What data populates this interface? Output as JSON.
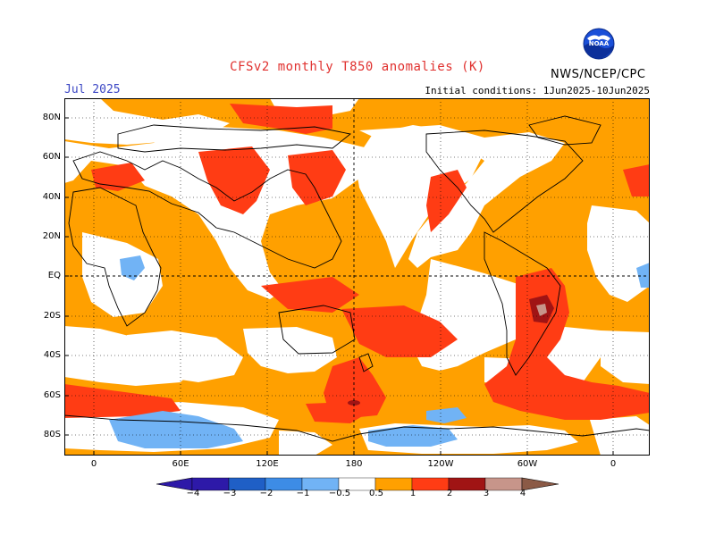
{
  "header": {
    "title": "CFSv2 monthly T850 anomalies (K)",
    "period": "Jul 2025",
    "initial_conditions": "Initial conditions: 1Jun2025-10Jun2025",
    "agency": "NWS/NCEP/CPC",
    "logo_text": "NOAA"
  },
  "map": {
    "projection": "cylindrical-equidistant",
    "lat_labels": [
      "80N",
      "60N",
      "40N",
      "20N",
      "EQ",
      "20S",
      "40S",
      "60S",
      "80S"
    ],
    "lon_labels": [
      "0",
      "60E",
      "120E",
      "180",
      "120W",
      "60W",
      "0"
    ],
    "gridlines": "dotted"
  },
  "colorbar": {
    "labels": [
      "−4",
      "−3",
      "−2",
      "−1",
      "−0.5",
      "0.5",
      "1",
      "2",
      "3",
      "4"
    ],
    "colors": [
      "#2d19a8",
      "#1f5fc6",
      "#3d8ce6",
      "#71b3f5",
      "#ffffff",
      "#ffa000",
      "#ff3c14",
      "#a01414",
      "#c7958a",
      "#8b5a46"
    ],
    "min_color": "#2d19a8",
    "max_color": "#8b5a46"
  }
}
